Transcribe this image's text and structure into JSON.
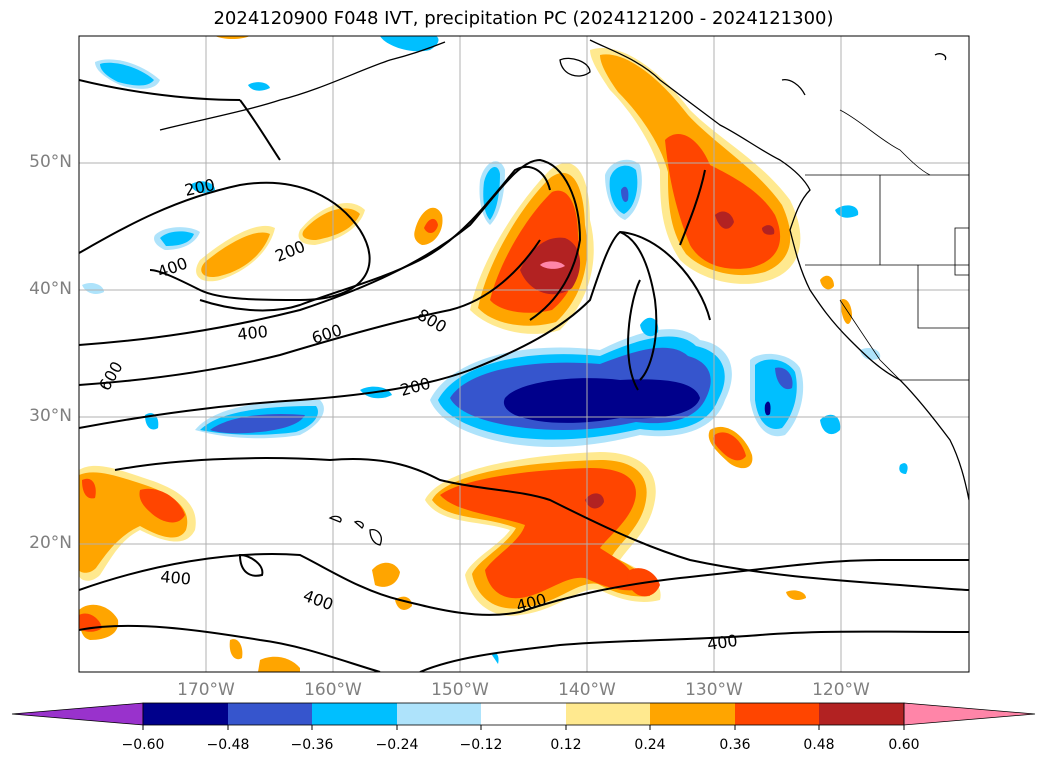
{
  "title": "2024120900 F048 IVT, precipitation PC (2024121200 - 2024121300)",
  "lat_labels": [
    "50°N",
    "40°N",
    "30°N",
    "20°N"
  ],
  "lon_labels": [
    "170°W",
    "160°W",
    "150°W",
    "140°W",
    "130°W",
    "120°W"
  ],
  "contour_labels": [
    "200",
    "200",
    "400",
    "400",
    "400",
    "400",
    "600",
    "600",
    "800",
    "200",
    "400"
  ],
  "colorbar": {
    "ticks": [
      "−0.60",
      "−0.48",
      "−0.36",
      "−0.24",
      "−0.12",
      "0.12",
      "0.24",
      "0.36",
      "0.48",
      "0.60"
    ],
    "colors": [
      "#9932cc",
      "#00008b",
      "#3655cd",
      "#00bfff",
      "#aee3fb",
      "#ffffff",
      "#ffe98f",
      "#ffa500",
      "#ff4500",
      "#b22222",
      "#ff85a8"
    ]
  }
}
